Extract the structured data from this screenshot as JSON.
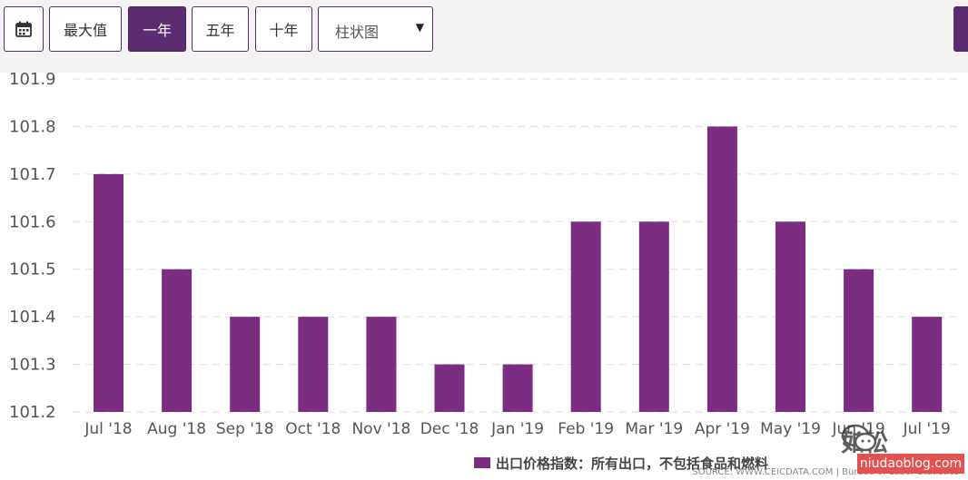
{
  "toolbar": {
    "calendar_icon": "calendar-icon",
    "buttons": [
      {
        "label": "最大值",
        "active": false
      },
      {
        "label": "一年",
        "active": true
      },
      {
        "label": "五年",
        "active": false
      },
      {
        "label": "十年",
        "active": false
      }
    ],
    "chart_type_select": {
      "value": "柱状图"
    }
  },
  "colors": {
    "bar": "#7b2d82",
    "active_button": "#5b2c6f",
    "grid": "#dddddd"
  },
  "chart_data": {
    "type": "bar",
    "categories": [
      "Jul '18",
      "Aug '18",
      "Sep '18",
      "Oct '18",
      "Nov '18",
      "Dec '18",
      "Jan '19",
      "Feb '19",
      "Mar '19",
      "Apr '19",
      "May '19",
      "Jun '19",
      "Jul '19"
    ],
    "series": [
      {
        "name": "出口价格指数：所有出口，不包括食品和燃料",
        "values": [
          101.7,
          101.5,
          101.4,
          101.4,
          101.4,
          101.3,
          101.3,
          101.6,
          101.6,
          101.8,
          101.6,
          101.5,
          101.4
        ]
      }
    ],
    "ylim": [
      101.2,
      101.9
    ],
    "yticks": [
      "101.2",
      "101.3",
      "101.4",
      "101.5",
      "101.6",
      "101.7",
      "101.8",
      "101.9"
    ],
    "grid": true,
    "legend_position": "bottom",
    "source": "SOURCE: WWW.CEICDATA.COM | Bureau of Labor Statistics"
  },
  "watermark": {
    "text": "如松",
    "site": "niudaoblog.com"
  }
}
